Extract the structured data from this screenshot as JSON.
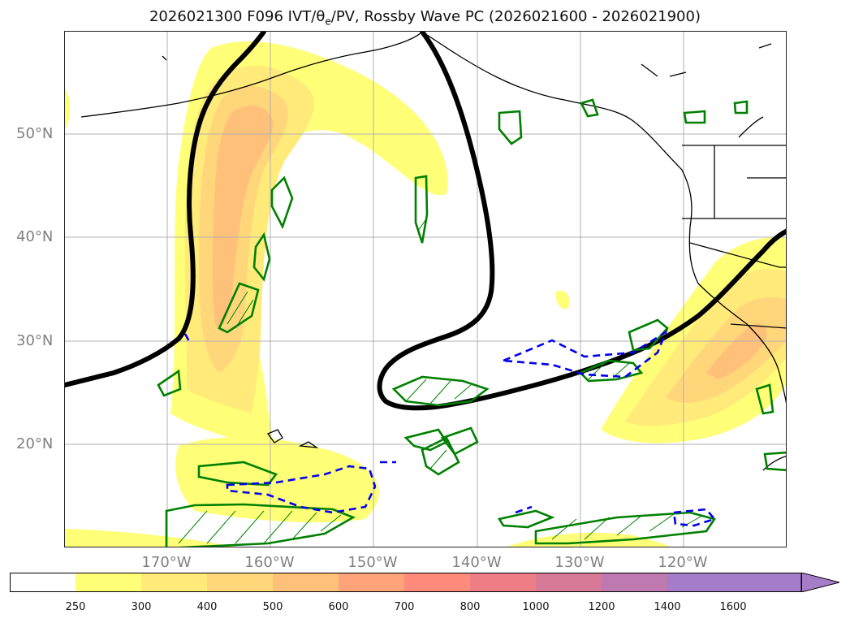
{
  "title": {
    "prefix": "2026021300 F096 IVT/θ",
    "sub": "e",
    "suffix": "/PV, Rossby Wave PC (2026021600 - 2026021900)"
  },
  "map": {
    "lat_labels": [
      "50°N",
      "40°N",
      "30°N",
      "20°N"
    ],
    "lon_labels": [
      "170°W",
      "160°W",
      "150°W",
      "140°W",
      "130°W",
      "120°W"
    ],
    "colors": {
      "ivt_levels": [
        "#ffffff",
        "#ffff78",
        "#ffea7a",
        "#ffd67a",
        "#ffc07a",
        "#ffa47a",
        "#fd8a7a",
        "#ef7d86",
        "#d77a98",
        "#bd79b0",
        "#a57cc8"
      ],
      "pv_contour": "#000000",
      "theta_e_contour": "#008000",
      "dashed_contour": "#0000ee"
    }
  },
  "colorbar": {
    "ticks": [
      "250",
      "300",
      "400",
      "500",
      "600",
      "700",
      "800",
      "1000",
      "1200",
      "1400",
      "1600"
    ],
    "extend": "max"
  }
}
